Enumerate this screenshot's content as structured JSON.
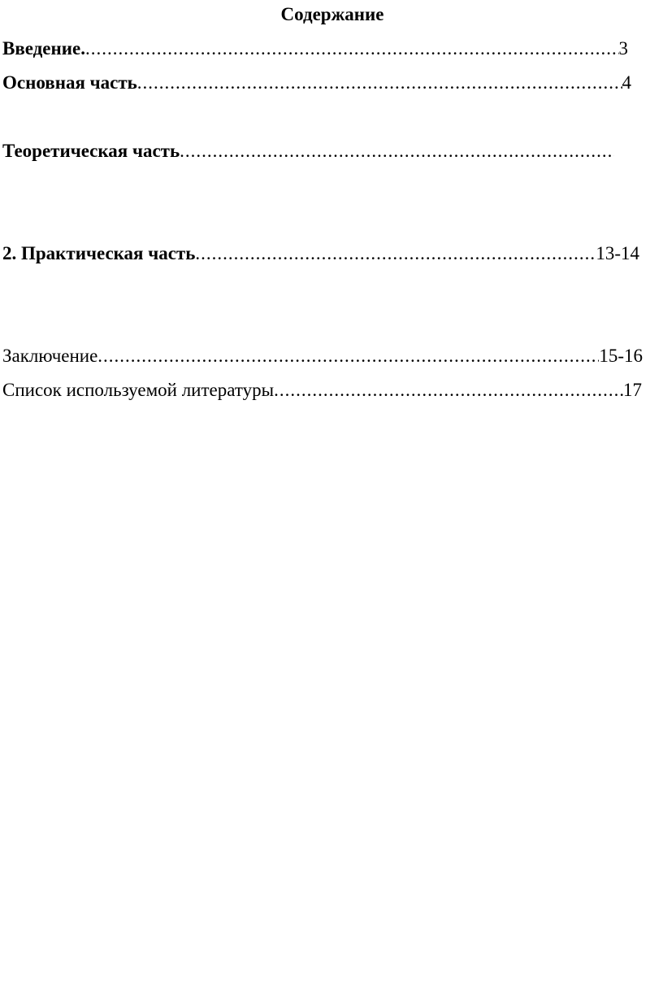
{
  "page": {
    "background": "#ffffff",
    "text_color": "#000000"
  },
  "toc": {
    "title": "Содержание",
    "leader_dots": "......................................................................................................................................................",
    "items": [
      {
        "label": "Введение.",
        "pages": "3"
      },
      {
        "label": "Основная часть",
        "pages": "4"
      },
      {
        "label": "Теоретическая часть",
        "pages": ""
      },
      {
        "label": "2. Практическая часть",
        "pages": "13-14"
      },
      {
        "label": "Заключение",
        "pages": "15-16"
      },
      {
        "label": "Список используемой литературы",
        "pages": "17"
      }
    ]
  }
}
